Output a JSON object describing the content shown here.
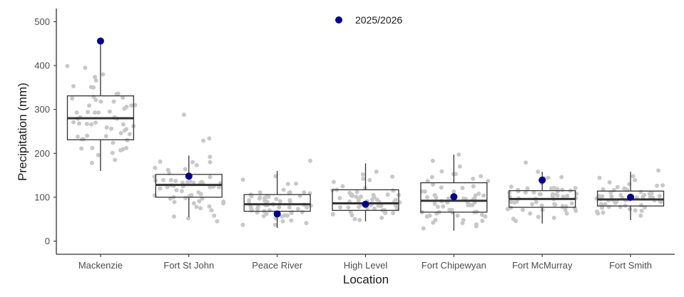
{
  "chart_data": {
    "type": "box",
    "xlabel": "Location",
    "ylabel": "Precipitation (mm)",
    "ylim": [
      -30,
      530
    ],
    "yticks": [
      0,
      100,
      200,
      300,
      400,
      500
    ],
    "grid": false,
    "legend_position": "top-center",
    "categories": [
      "Mackenzie",
      "Fort St John",
      "Peace River",
      "High Level",
      "Fort Chipewyan",
      "Fort McMurray",
      "Fort Smith"
    ],
    "boxes": [
      {
        "name": "Mackenzie",
        "whisker_low": 160,
        "q1": 231,
        "median": 280,
        "q3": 331,
        "whisker_high": 456
      },
      {
        "name": "Fort St John",
        "whisker_low": 55,
        "q1": 100,
        "median": 128,
        "q3": 152,
        "whisker_high": 195
      },
      {
        "name": "Peace River",
        "whisker_low": 30,
        "q1": 68,
        "median": 84,
        "q3": 106,
        "whisker_high": 160
      },
      {
        "name": "High Level",
        "whisker_low": 45,
        "q1": 70,
        "median": 86,
        "q3": 117,
        "whisker_high": 177
      },
      {
        "name": "Fort Chipewyan",
        "whisker_low": 24,
        "q1": 66,
        "median": 92,
        "q3": 133,
        "whisker_high": 197
      },
      {
        "name": "Fort McMurray",
        "whisker_low": 40,
        "q1": 77,
        "median": 96,
        "q3": 115,
        "whisker_high": 158
      },
      {
        "name": "Fort Smith",
        "whisker_low": 48,
        "q1": 80,
        "median": 95,
        "q3": 114,
        "whisker_high": 158
      }
    ],
    "observations": [
      [
        256,
        267,
        295,
        310,
        224,
        201,
        279,
        230,
        185,
        266,
        279,
        309,
        246,
        268,
        239,
        232,
        282,
        207,
        255,
        302,
        271,
        293,
        335,
        351,
        395,
        266,
        244,
        212,
        374,
        270,
        327,
        238,
        293,
        294,
        178,
        318,
        262,
        196,
        336,
        211,
        366,
        306,
        209,
        240,
        380,
        252,
        281,
        353,
        259,
        325,
        318,
        350,
        282,
        232,
        212,
        329,
        293,
        309,
        322,
        399
      ],
      [
        127,
        139,
        75,
        147,
        56,
        100,
        125,
        155,
        192,
        134,
        105,
        124,
        173,
        132,
        138,
        180,
        164,
        103,
        132,
        89,
        150,
        132,
        162,
        136,
        45,
        78,
        167,
        111,
        91,
        114,
        180,
        135,
        126,
        234,
        86,
        52,
        123,
        133,
        107,
        58,
        86,
        97,
        120,
        123,
        181,
        139,
        98,
        146,
        137,
        126,
        97,
        123,
        133,
        288,
        104,
        116,
        229,
        70,
        79,
        90
      ],
      [
        117,
        66,
        57,
        37,
        111,
        77,
        58,
        91,
        110,
        96,
        130,
        41,
        93,
        102,
        56,
        65,
        77,
        84,
        92,
        111,
        82,
        101,
        97,
        82,
        80,
        91,
        109,
        47,
        62,
        103,
        73,
        98,
        148,
        52,
        70,
        83,
        62,
        140,
        59,
        70,
        86,
        70,
        106,
        75,
        131,
        66,
        64,
        103,
        73,
        37,
        77,
        68,
        93,
        111,
        90,
        81,
        78,
        99,
        45,
        183
      ],
      [
        77,
        53,
        59,
        106,
        66,
        75,
        81,
        91,
        89,
        81,
        110,
        77,
        71,
        62,
        98,
        121,
        152,
        101,
        89,
        74,
        82,
        50,
        83,
        101,
        86,
        103,
        94,
        81,
        105,
        97,
        147,
        90,
        135,
        78,
        92,
        81,
        105,
        61,
        48,
        112,
        125,
        115,
        104,
        75,
        80,
        88,
        66,
        142,
        94,
        64,
        106,
        64,
        95,
        100,
        139,
        117,
        89,
        70,
        116,
        158
      ],
      [
        66,
        34,
        82,
        56,
        153,
        148,
        42,
        137,
        105,
        46,
        97,
        78,
        91,
        108,
        142,
        89,
        82,
        129,
        67,
        38,
        82,
        85,
        58,
        113,
        99,
        79,
        66,
        153,
        29,
        159,
        41,
        60,
        146,
        66,
        63,
        125,
        113,
        48,
        197,
        56,
        104,
        71,
        97,
        121,
        122,
        100,
        170,
        58,
        95,
        97,
        113,
        137,
        66,
        88,
        48,
        183,
        96,
        104,
        88,
        71
      ],
      [
        75,
        84,
        107,
        83,
        143,
        71,
        106,
        119,
        120,
        111,
        76,
        97,
        63,
        132,
        63,
        73,
        88,
        98,
        101,
        144,
        121,
        80,
        104,
        71,
        69,
        103,
        53,
        90,
        78,
        84,
        96,
        81,
        115,
        107,
        101,
        121,
        46,
        114,
        108,
        96,
        55,
        124,
        86,
        158,
        120,
        98,
        117,
        146,
        111,
        71,
        114,
        89,
        110,
        79,
        89,
        103,
        107,
        179,
        117,
        51
      ],
      [
        99,
        70,
        69,
        81,
        90,
        116,
        102,
        93,
        118,
        87,
        93,
        65,
        94,
        103,
        144,
        77,
        101,
        120,
        97,
        84,
        134,
        105,
        99,
        82,
        111,
        130,
        95,
        108,
        67,
        91,
        123,
        98,
        81,
        93,
        84,
        103,
        161,
        96,
        100,
        89,
        109,
        78,
        97,
        102,
        92,
        101,
        78,
        127,
        91,
        76,
        105,
        112,
        73,
        117,
        95,
        58,
        148,
        63,
        139,
        126
      ]
    ],
    "series": [
      {
        "name": "2025/2026",
        "color": "#00008b",
        "values": [
          456,
          148,
          62,
          84,
          101,
          139,
          100
        ]
      }
    ]
  }
}
